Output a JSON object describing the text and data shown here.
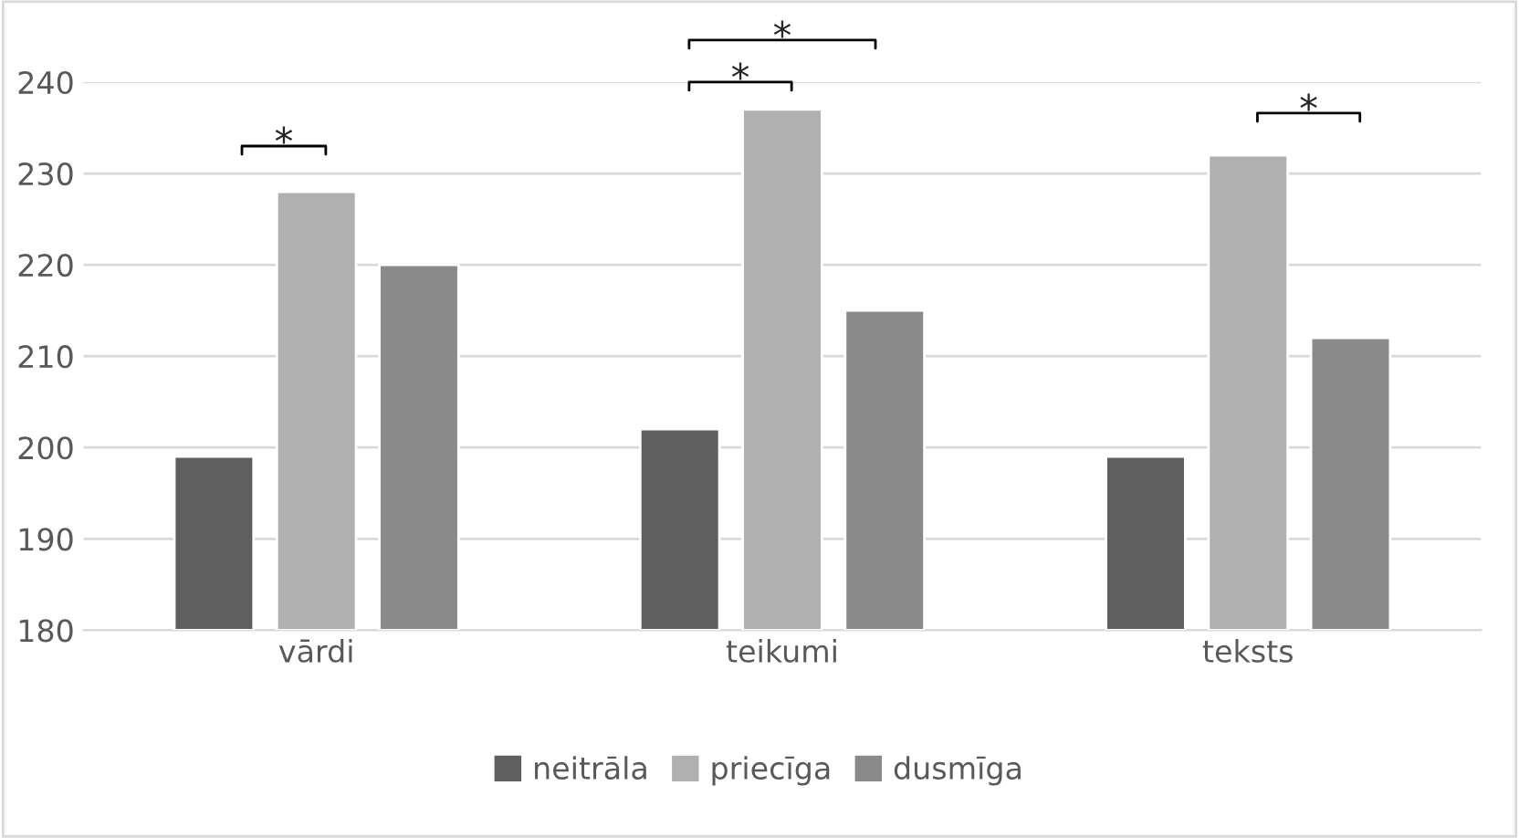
{
  "chart_data": {
    "type": "bar",
    "categories": [
      "vārdi",
      "teikumi",
      "teksts"
    ],
    "series": [
      {
        "name": "neitrāla",
        "color": "#5f5f5f",
        "values": [
          199,
          202,
          199
        ]
      },
      {
        "name": "priecīga",
        "color": "#b0b0b0",
        "values": [
          228,
          237,
          232
        ]
      },
      {
        "name": "dusmīga",
        "color": "#8a8a8a",
        "values": [
          220,
          215,
          212
        ]
      }
    ],
    "ylim": [
      180,
      240
    ],
    "yticks": [
      180,
      190,
      200,
      210,
      220,
      230,
      240
    ],
    "grid": "y",
    "legend": "bottom",
    "annotations": [
      "*",
      "*",
      "*",
      "*"
    ]
  }
}
